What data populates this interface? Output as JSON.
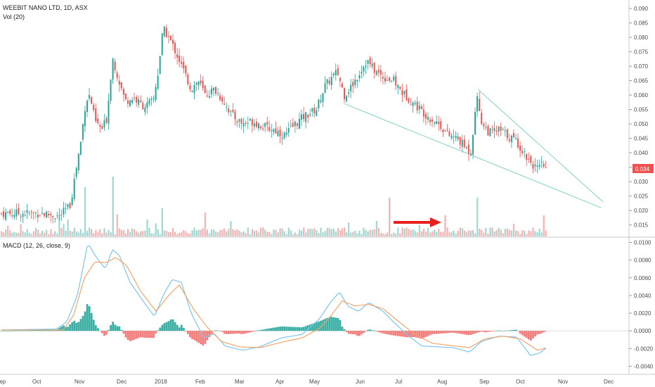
{
  "header": {
    "symbol": "WEEBIT NANO LTD, 1D, ASX",
    "volume": "Vol (20)"
  },
  "macd_header": "MACD (12, 26, close, 9)",
  "price_badge": "0.034",
  "colors": {
    "up": "#26a69a",
    "down": "#ef5350",
    "macd_line": "#7cc6f2",
    "signal_line": "#f5a46a",
    "trendline": "#7fd1c6",
    "arrow": "#e8201c"
  },
  "chart_data": [
    {
      "type": "candlestick",
      "title": "WEEBIT NANO LTD, 1D, ASX",
      "price_axis": [
        "0.090",
        "0.085",
        "0.080",
        "0.075",
        "0.070",
        "0.065",
        "0.060",
        "0.055",
        "0.050",
        "0.045",
        "0.040",
        "0.035",
        "0.030",
        "0.025",
        "0.020",
        "0.015"
      ],
      "ylim": [
        0.012,
        0.091
      ],
      "time_axis": [
        "Sep",
        "Oct",
        "Nov",
        "Dec",
        "2018",
        "Feb",
        "Mar",
        "Apr",
        "May",
        "Jun",
        "Jul",
        "Aug",
        "Sep",
        "Oct",
        "Nov",
        "Dec"
      ],
      "last_price": 0.034,
      "volume_label": "Vol (20)",
      "annotations": [
        "red arrow pointing at volume spike near Aug",
        "falling wedge trendlines from May and Sep"
      ],
      "grid": false
    },
    {
      "type": "line",
      "title": "MACD (12, 26, close, 9)",
      "y_axis": [
        "0.0100",
        "0.0080",
        "0.0060",
        "0.0040",
        "0.0020",
        "0.0000",
        "-0.0020",
        "-0.0040"
      ],
      "ylim": [
        -0.0046,
        0.0102
      ],
      "series": [
        {
          "name": "MACD",
          "key": "macd"
        },
        {
          "name": "Signal",
          "key": "signal"
        },
        {
          "name": "Histogram",
          "key": "hist"
        }
      ],
      "macd_keypoints": [
        [
          0,
          0.0001
        ],
        [
          80,
          0.0002
        ],
        [
          95,
          0.001
        ],
        [
          110,
          0.004
        ],
        [
          125,
          0.0099
        ],
        [
          138,
          0.0082
        ],
        [
          150,
          0.007
        ],
        [
          160,
          0.0092
        ],
        [
          170,
          0.0085
        ],
        [
          185,
          0.0055
        ],
        [
          205,
          0.0032
        ],
        [
          220,
          0.0016
        ],
        [
          232,
          0.004
        ],
        [
          245,
          0.0058
        ],
        [
          258,
          0.0055
        ],
        [
          272,
          0.002
        ],
        [
          290,
          -0.0008
        ],
        [
          305,
          -0.0003
        ],
        [
          320,
          -0.0017
        ],
        [
          345,
          -0.0022
        ],
        [
          370,
          -0.0018
        ],
        [
          400,
          -0.0008
        ],
        [
          430,
          -0.0004
        ],
        [
          455,
          0.0014
        ],
        [
          470,
          0.0032
        ],
        [
          483,
          0.0044
        ],
        [
          495,
          0.0028
        ],
        [
          510,
          0.0022
        ],
        [
          525,
          0.0032
        ],
        [
          545,
          0.0022
        ],
        [
          560,
          0.001
        ],
        [
          580,
          -0.0005
        ],
        [
          600,
          -0.0017
        ],
        [
          620,
          -0.0018
        ],
        [
          645,
          -0.0019
        ],
        [
          668,
          -0.0024
        ],
        [
          685,
          -0.0012
        ],
        [
          710,
          -0.0006
        ],
        [
          735,
          -0.0007
        ],
        [
          755,
          -0.0028
        ],
        [
          768,
          -0.0025
        ],
        [
          778,
          -0.0019
        ]
      ],
      "signal_keypoints": [
        [
          0,
          0.0001
        ],
        [
          90,
          0.0001
        ],
        [
          105,
          0.0018
        ],
        [
          120,
          0.006
        ],
        [
          135,
          0.0078
        ],
        [
          150,
          0.0077
        ],
        [
          165,
          0.0083
        ],
        [
          180,
          0.0074
        ],
        [
          200,
          0.0045
        ],
        [
          222,
          0.0022
        ],
        [
          240,
          0.004
        ],
        [
          255,
          0.0052
        ],
        [
          275,
          0.0025
        ],
        [
          295,
          0.0004
        ],
        [
          315,
          -0.0012
        ],
        [
          340,
          -0.0018
        ],
        [
          370,
          -0.0019
        ],
        [
          400,
          -0.0013
        ],
        [
          430,
          -0.0008
        ],
        [
          455,
          0.0003
        ],
        [
          470,
          0.0016
        ],
        [
          487,
          0.0034
        ],
        [
          505,
          0.0028
        ],
        [
          525,
          0.003
        ],
        [
          545,
          0.0025
        ],
        [
          565,
          0.0012
        ],
        [
          590,
          -0.0004
        ],
        [
          615,
          -0.0014
        ],
        [
          645,
          -0.0017
        ],
        [
          668,
          -0.0019
        ],
        [
          690,
          -0.0009
        ],
        [
          715,
          -0.0006
        ],
        [
          740,
          -0.0009
        ],
        [
          765,
          -0.0022
        ],
        [
          778,
          -0.0019
        ]
      ]
    }
  ]
}
